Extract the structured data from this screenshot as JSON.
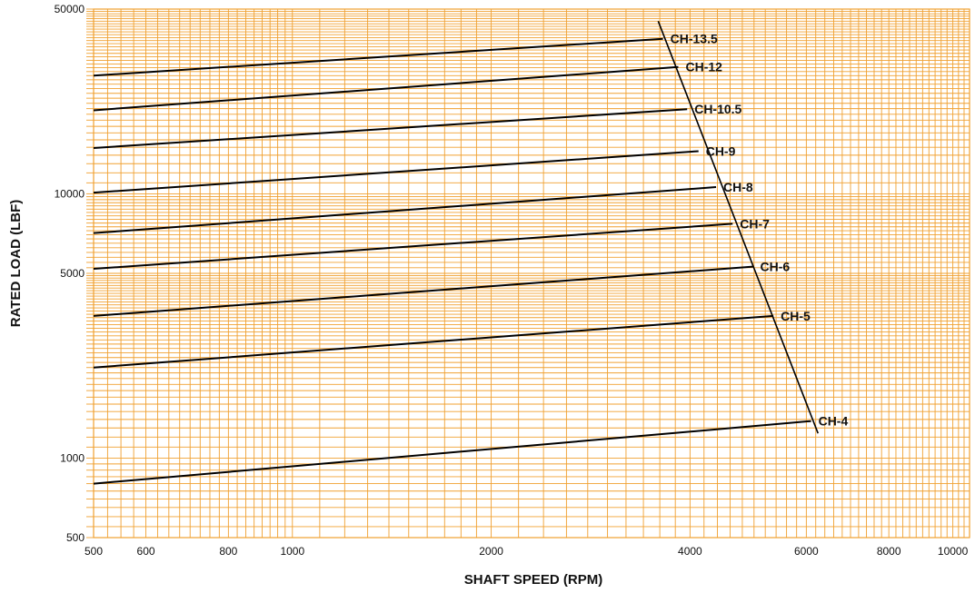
{
  "chart_data": {
    "type": "line",
    "title": "",
    "xlabel": "SHAFT SPEED (RPM)",
    "ylabel": "RATED LOAD (LBF)",
    "xscale": "log",
    "yscale": "log",
    "xlim": [
      500,
      10600
    ],
    "ylim": [
      500,
      50000
    ],
    "x_ticks": [
      {
        "value": 500,
        "label": "500"
      },
      {
        "value": 600,
        "label": "600"
      },
      {
        "value": 800,
        "label": "800"
      },
      {
        "value": 1000,
        "label": "1000"
      },
      {
        "value": 2000,
        "label": "2000"
      },
      {
        "value": 4000,
        "label": "4000"
      },
      {
        "value": 6000,
        "label": "6000"
      },
      {
        "value": 8000,
        "label": "8000"
      },
      {
        "value": 10000,
        "label": "10000"
      }
    ],
    "y_ticks": [
      {
        "value": 500,
        "label": "500"
      },
      {
        "value": 1000,
        "label": "1000"
      },
      {
        "value": 5000,
        "label": "5000"
      },
      {
        "value": 10000,
        "label": "10000"
      },
      {
        "value": 50000,
        "label": "50000"
      }
    ],
    "grid": true,
    "grid_color": "#f0a030",
    "line_color": "#000000",
    "series": [
      {
        "name": "CH-13.5",
        "x": [
          500,
          3640
        ],
        "y": [
          28000,
          38600
        ]
      },
      {
        "name": "CH-12",
        "x": [
          500,
          3840
        ],
        "y": [
          20700,
          30200
        ]
      },
      {
        "name": "CH-10.5",
        "x": [
          500,
          3960
        ],
        "y": [
          14900,
          20900
        ]
      },
      {
        "name": "CH-9",
        "x": [
          500,
          4120
        ],
        "y": [
          10100,
          14500
        ]
      },
      {
        "name": "CH-8",
        "x": [
          500,
          4380
        ],
        "y": [
          7100,
          10600
        ]
      },
      {
        "name": "CH-7",
        "x": [
          500,
          4640
        ],
        "y": [
          5200,
          7700
        ]
      },
      {
        "name": "CH-6",
        "x": [
          500,
          4980
        ],
        "y": [
          3450,
          5300
        ]
      },
      {
        "name": "CH-5",
        "x": [
          500,
          5350
        ],
        "y": [
          2200,
          3450
        ]
      },
      {
        "name": "CH-4",
        "x": [
          500,
          6100
        ],
        "y": [
          800,
          1380
        ]
      }
    ],
    "limit_line": {
      "x": [
        3580,
        6250
      ],
      "y": [
        45000,
        1240
      ]
    }
  }
}
